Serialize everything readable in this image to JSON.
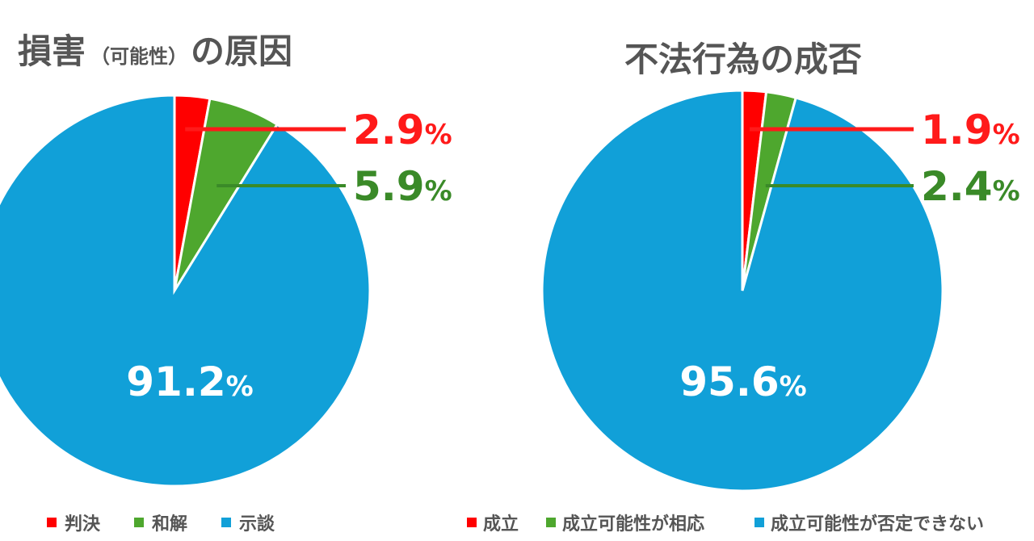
{
  "chart_data": [
    {
      "type": "pie",
      "title": "損害",
      "title_note": "（可能性）",
      "title_suffix": "の原因",
      "categories": [
        "判決",
        "和解",
        "示談"
      ],
      "values": [
        2.9,
        5.9,
        91.2
      ],
      "value_labels": [
        "2.9",
        "5.9",
        "91.2"
      ],
      "unit": "%",
      "colors": [
        "#ff0000",
        "#4ea72e",
        "#11a0d8"
      ],
      "label_colors": [
        "#ff1a1a",
        "#3a8a28",
        "#ffffff"
      ],
      "legend_position": "bottom"
    },
    {
      "type": "pie",
      "title": "不法行為の成否",
      "categories": [
        "成立",
        "成立可能性が相応",
        "成立可能性が否定できない"
      ],
      "values": [
        1.9,
        2.4,
        95.6
      ],
      "value_labels": [
        "1.9",
        "2.4",
        "95.6"
      ],
      "unit": "%",
      "colors": [
        "#ff0000",
        "#4ea72e",
        "#11a0d8"
      ],
      "label_colors": [
        "#ff1a1a",
        "#3a8a28",
        "#ffffff"
      ],
      "legend_position": "bottom"
    }
  ]
}
